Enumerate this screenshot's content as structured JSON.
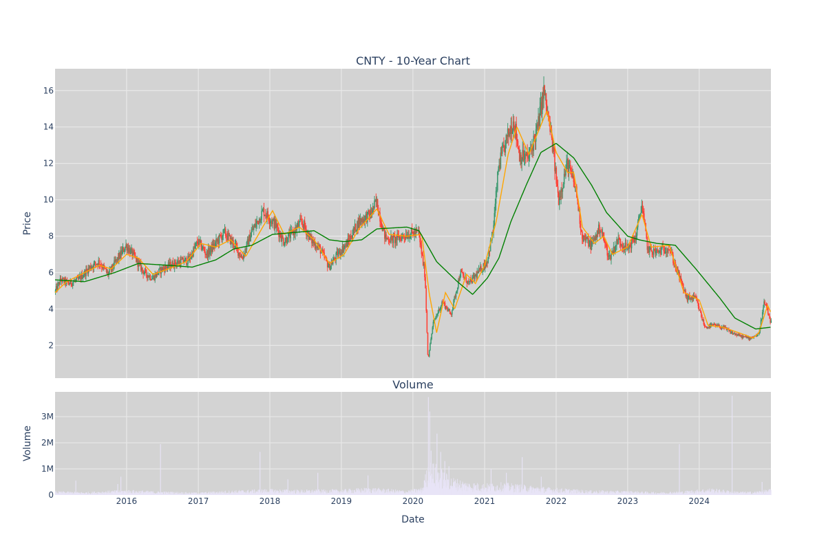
{
  "chart_data": [
    {
      "type": "candlestick",
      "title": "CNTY - 10-Year Chart",
      "ylabel": "Price",
      "xlabel": "",
      "x_range": [
        "2015-01-01",
        "2025-01-01"
      ],
      "ylim": [
        0.2,
        17.2
      ],
      "y_ticks": [
        2,
        4,
        6,
        8,
        10,
        12,
        14,
        16
      ],
      "grid": true,
      "plot_background": "#d3d3d3",
      "colors": {
        "up": "#3d9970",
        "down": "#ff4136",
        "ma_short": "#ffa500",
        "ma_long": "#008000"
      },
      "price_path": [
        [
          "2015-01-01",
          4.9
        ],
        [
          "2015-02-01",
          5.6
        ],
        [
          "2015-03-15",
          5.4
        ],
        [
          "2015-05-01",
          5.6
        ],
        [
          "2015-07-01",
          6.3
        ],
        [
          "2015-08-15",
          6.6
        ],
        [
          "2015-10-01",
          5.9
        ],
        [
          "2015-11-15",
          6.7
        ],
        [
          "2016-01-01",
          7.5
        ],
        [
          "2016-02-15",
          6.8
        ],
        [
          "2016-04-01",
          6.0
        ],
        [
          "2016-05-15",
          5.7
        ],
        [
          "2016-07-01",
          6.2
        ],
        [
          "2016-09-01",
          6.5
        ],
        [
          "2016-11-15",
          6.7
        ],
        [
          "2017-01-01",
          7.7
        ],
        [
          "2017-02-15",
          7.0
        ],
        [
          "2017-04-01",
          7.6
        ],
        [
          "2017-05-15",
          8.2
        ],
        [
          "2017-07-01",
          7.6
        ],
        [
          "2017-08-15",
          6.8
        ],
        [
          "2017-10-01",
          8.2
        ],
        [
          "2017-12-01",
          9.4
        ],
        [
          "2018-02-01",
          8.6
        ],
        [
          "2018-03-15",
          7.7
        ],
        [
          "2018-05-01",
          8.2
        ],
        [
          "2018-06-15",
          8.8
        ],
        [
          "2018-08-01",
          7.8
        ],
        [
          "2018-09-15",
          7.3
        ],
        [
          "2018-11-01",
          6.3
        ],
        [
          "2018-12-15",
          7.0
        ],
        [
          "2019-02-01",
          7.6
        ],
        [
          "2019-04-01",
          8.8
        ],
        [
          "2019-06-01",
          9.2
        ],
        [
          "2019-07-01",
          9.9
        ],
        [
          "2019-08-15",
          7.9
        ],
        [
          "2019-10-01",
          7.8
        ],
        [
          "2019-12-01",
          8.1
        ],
        [
          "2020-02-01",
          8.2
        ],
        [
          "2020-03-05",
          5.8
        ],
        [
          "2020-03-20",
          1.2
        ],
        [
          "2020-04-15",
          3.2
        ],
        [
          "2020-06-01",
          4.4
        ],
        [
          "2020-07-15",
          3.7
        ],
        [
          "2020-09-01",
          6.0
        ],
        [
          "2020-10-15",
          5.4
        ],
        [
          "2020-12-01",
          6.0
        ],
        [
          "2021-01-15",
          6.6
        ],
        [
          "2021-02-15",
          8.3
        ],
        [
          "2021-03-15",
          11.8
        ],
        [
          "2021-05-01",
          13.5
        ],
        [
          "2021-06-01",
          14.4
        ],
        [
          "2021-07-01",
          12.4
        ],
        [
          "2021-08-15",
          12.3
        ],
        [
          "2021-10-01",
          14.0
        ],
        [
          "2021-11-01",
          16.0
        ],
        [
          "2021-12-15",
          13.0
        ],
        [
          "2022-01-15",
          10.0
        ],
        [
          "2022-03-01",
          12.0
        ],
        [
          "2022-04-15",
          10.5
        ],
        [
          "2022-05-15",
          8.0
        ],
        [
          "2022-07-01",
          7.5
        ],
        [
          "2022-08-15",
          8.5
        ],
        [
          "2022-10-01",
          6.8
        ],
        [
          "2022-11-15",
          7.8
        ],
        [
          "2023-01-01",
          7.3
        ],
        [
          "2023-02-15",
          8.0
        ],
        [
          "2023-03-15",
          9.8
        ],
        [
          "2023-04-15",
          7.3
        ],
        [
          "2023-06-01",
          7.1
        ],
        [
          "2023-08-01",
          7.4
        ],
        [
          "2023-09-15",
          6.0
        ],
        [
          "2023-11-01",
          4.6
        ],
        [
          "2023-12-15",
          4.6
        ],
        [
          "2024-02-01",
          3.0
        ],
        [
          "2024-03-15",
          3.1
        ],
        [
          "2024-05-01",
          3.0
        ],
        [
          "2024-06-15",
          2.7
        ],
        [
          "2024-08-01",
          2.5
        ],
        [
          "2024-09-15",
          2.4
        ],
        [
          "2024-11-01",
          2.6
        ],
        [
          "2024-12-01",
          4.4
        ],
        [
          "2025-01-01",
          3.3
        ]
      ],
      "ma_short": [
        [
          "2015-01-01",
          4.9
        ],
        [
          "2015-03-01",
          5.5
        ],
        [
          "2015-06-01",
          6.0
        ],
        [
          "2015-08-15",
          6.4
        ],
        [
          "2015-10-15",
          6.2
        ],
        [
          "2016-01-01",
          7.0
        ],
        [
          "2016-03-01",
          6.8
        ],
        [
          "2016-05-15",
          5.9
        ],
        [
          "2016-08-01",
          6.2
        ],
        [
          "2016-11-01",
          6.6
        ],
        [
          "2017-01-15",
          7.6
        ],
        [
          "2017-04-01",
          7.4
        ],
        [
          "2017-06-15",
          7.8
        ],
        [
          "2017-09-01",
          6.9
        ],
        [
          "2017-12-01",
          8.6
        ],
        [
          "2018-01-15",
          9.4
        ],
        [
          "2018-03-15",
          8.1
        ],
        [
          "2018-06-01",
          8.5
        ],
        [
          "2018-08-15",
          7.8
        ],
        [
          "2018-11-01",
          6.5
        ],
        [
          "2019-01-15",
          7.0
        ],
        [
          "2019-04-01",
          8.4
        ],
        [
          "2019-07-01",
          9.5
        ],
        [
          "2019-09-01",
          8.1
        ],
        [
          "2019-12-01",
          8.0
        ],
        [
          "2020-02-15",
          8.1
        ],
        [
          "2020-03-25",
          4.8
        ],
        [
          "2020-05-01",
          2.7
        ],
        [
          "2020-06-15",
          4.9
        ],
        [
          "2020-08-01",
          4.0
        ],
        [
          "2020-10-01",
          5.9
        ],
        [
          "2020-11-15",
          5.4
        ],
        [
          "2021-01-01",
          6.4
        ],
        [
          "2021-03-01",
          8.8
        ],
        [
          "2021-05-01",
          12.5
        ],
        [
          "2021-06-15",
          14.0
        ],
        [
          "2021-08-15",
          12.5
        ],
        [
          "2021-11-15",
          14.9
        ],
        [
          "2022-01-01",
          12.6
        ],
        [
          "2022-03-01",
          11.5
        ],
        [
          "2022-04-01",
          11.5
        ],
        [
          "2022-05-15",
          8.5
        ],
        [
          "2022-07-15",
          7.6
        ],
        [
          "2022-09-01",
          8.0
        ],
        [
          "2022-10-15",
          7.0
        ],
        [
          "2023-01-01",
          7.4
        ],
        [
          "2023-03-15",
          9.2
        ],
        [
          "2023-05-01",
          7.4
        ],
        [
          "2023-08-01",
          7.5
        ],
        [
          "2023-10-15",
          4.9
        ],
        [
          "2024-01-01",
          4.5
        ],
        [
          "2024-02-15",
          3.1
        ],
        [
          "2024-05-01",
          3.0
        ],
        [
          "2024-08-15",
          2.6
        ],
        [
          "2024-10-01",
          2.4
        ],
        [
          "2024-11-01",
          2.7
        ],
        [
          "2024-12-15",
          4.2
        ],
        [
          "2025-01-01",
          3.8
        ]
      ],
      "ma_long": [
        [
          "2015-01-01",
          5.6
        ],
        [
          "2015-06-01",
          5.5
        ],
        [
          "2015-11-01",
          6.0
        ],
        [
          "2016-03-01",
          6.5
        ],
        [
          "2016-08-01",
          6.4
        ],
        [
          "2016-12-01",
          6.3
        ],
        [
          "2017-04-01",
          6.7
        ],
        [
          "2017-07-01",
          7.3
        ],
        [
          "2017-10-01",
          7.5
        ],
        [
          "2018-01-15",
          8.1
        ],
        [
          "2018-05-01",
          8.2
        ],
        [
          "2018-08-15",
          8.3
        ],
        [
          "2018-11-01",
          7.8
        ],
        [
          "2019-01-15",
          7.7
        ],
        [
          "2019-04-15",
          7.8
        ],
        [
          "2019-07-01",
          8.4
        ],
        [
          "2019-12-01",
          8.5
        ],
        [
          "2020-02-01",
          8.3
        ],
        [
          "2020-03-15",
          7.5
        ],
        [
          "2020-05-01",
          6.6
        ],
        [
          "2020-08-15",
          5.5
        ],
        [
          "2020-11-01",
          4.8
        ],
        [
          "2021-01-15",
          5.7
        ],
        [
          "2021-03-15",
          6.8
        ],
        [
          "2021-05-15",
          8.8
        ],
        [
          "2021-08-01",
          10.8
        ],
        [
          "2021-10-15",
          12.6
        ],
        [
          "2022-01-01",
          13.1
        ],
        [
          "2022-04-01",
          12.3
        ],
        [
          "2022-07-01",
          10.8
        ],
        [
          "2022-09-15",
          9.3
        ],
        [
          "2023-01-01",
          8.0
        ],
        [
          "2023-03-01",
          7.8
        ],
        [
          "2023-06-01",
          7.6
        ],
        [
          "2023-09-01",
          7.5
        ],
        [
          "2023-12-15",
          6.2
        ],
        [
          "2024-04-15",
          4.6
        ],
        [
          "2024-07-01",
          3.5
        ],
        [
          "2024-10-15",
          2.9
        ],
        [
          "2025-01-01",
          3.0
        ]
      ]
    },
    {
      "type": "bar",
      "title": "Volume",
      "ylabel": "Volume",
      "xlabel": "Date",
      "x_range": [
        "2015-01-01",
        "2025-01-01"
      ],
      "ylim": [
        0,
        3950000
      ],
      "y_ticks": [
        0,
        1000000,
        2000000,
        3000000
      ],
      "y_tick_labels": [
        "0",
        "1M",
        "2M",
        "3M"
      ],
      "x_ticks": [
        "2016",
        "2017",
        "2018",
        "2019",
        "2020",
        "2021",
        "2022",
        "2023",
        "2024"
      ],
      "grid": true,
      "plot_background": "#d3d3d3",
      "bar_color": "#e8e4f7",
      "volume_profile": [
        [
          "2015-01-01",
          100000
        ],
        [
          "2015-06-01",
          80000
        ],
        [
          "2016-01-01",
          140000
        ],
        [
          "2016-06-01",
          100000
        ],
        [
          "2017-01-01",
          70000
        ],
        [
          "2017-06-01",
          120000
        ],
        [
          "2018-01-01",
          160000
        ],
        [
          "2018-06-01",
          140000
        ],
        [
          "2019-01-01",
          150000
        ],
        [
          "2019-06-01",
          200000
        ],
        [
          "2019-12-01",
          120000
        ],
        [
          "2020-02-15",
          200000
        ],
        [
          "2020-03-20",
          900000
        ],
        [
          "2020-05-01",
          800000
        ],
        [
          "2020-07-01",
          500000
        ],
        [
          "2020-10-01",
          350000
        ],
        [
          "2021-01-01",
          300000
        ],
        [
          "2021-04-01",
          330000
        ],
        [
          "2021-08-01",
          260000
        ],
        [
          "2021-12-01",
          200000
        ],
        [
          "2022-06-01",
          130000
        ],
        [
          "2023-01-01",
          110000
        ],
        [
          "2023-06-01",
          80000
        ],
        [
          "2023-10-01",
          100000
        ],
        [
          "2024-03-01",
          180000
        ],
        [
          "2024-07-01",
          100000
        ],
        [
          "2024-10-01",
          90000
        ],
        [
          "2025-01-01",
          160000
        ]
      ],
      "spikes": [
        [
          "2015-04-15",
          550000
        ],
        [
          "2015-11-15",
          420000
        ],
        [
          "2015-12-01",
          700000
        ],
        [
          "2016-06-20",
          1950000
        ],
        [
          "2017-11-10",
          1650000
        ],
        [
          "2018-04-01",
          600000
        ],
        [
          "2018-09-01",
          850000
        ],
        [
          "2019-05-15",
          750000
        ],
        [
          "2020-03-18",
          3750000
        ],
        [
          "2020-03-25",
          3200000
        ],
        [
          "2020-04-01",
          1700000
        ],
        [
          "2020-05-01",
          2350000
        ],
        [
          "2020-05-20",
          1650000
        ],
        [
          "2020-06-10",
          1300000
        ],
        [
          "2020-07-01",
          1100000
        ],
        [
          "2021-02-01",
          1000000
        ],
        [
          "2021-04-20",
          850000
        ],
        [
          "2021-07-10",
          1450000
        ],
        [
          "2021-10-15",
          700000
        ],
        [
          "2023-09-20",
          1950000
        ],
        [
          "2024-06-15",
          3800000
        ],
        [
          "2024-11-15",
          500000
        ]
      ]
    }
  ]
}
